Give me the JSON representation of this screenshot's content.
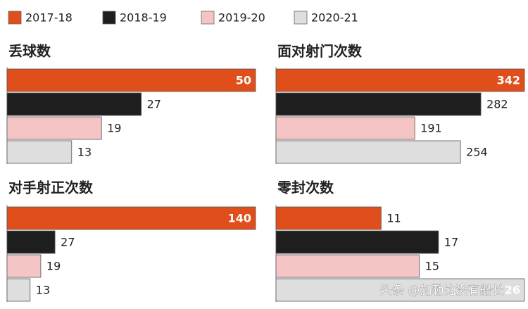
{
  "legend": {
    "labels": [
      "2017-18",
      "2018-19",
      "2019-20",
      "2020-21"
    ],
    "colors": [
      "#e04e1b",
      "#1e1e1e",
      "#f5c5c5",
      "#dedede"
    ]
  },
  "chart_data": [
    {
      "type": "bar",
      "orientation": "horizontal",
      "title": "丢球数",
      "values": [
        50,
        27,
        19,
        13
      ]
    },
    {
      "type": "bar",
      "orientation": "horizontal",
      "title": "面对射门次数",
      "values": [
        342,
        282,
        191,
        254
      ]
    },
    {
      "type": "bar",
      "orientation": "horizontal",
      "title": "对手射正次数",
      "values": [
        140,
        27,
        19,
        13
      ]
    },
    {
      "type": "bar",
      "orientation": "horizontal",
      "title": "零封次数",
      "values": [
        11,
        17,
        15,
        26
      ]
    }
  ],
  "watermark": "头条 @加勒比没有船长"
}
